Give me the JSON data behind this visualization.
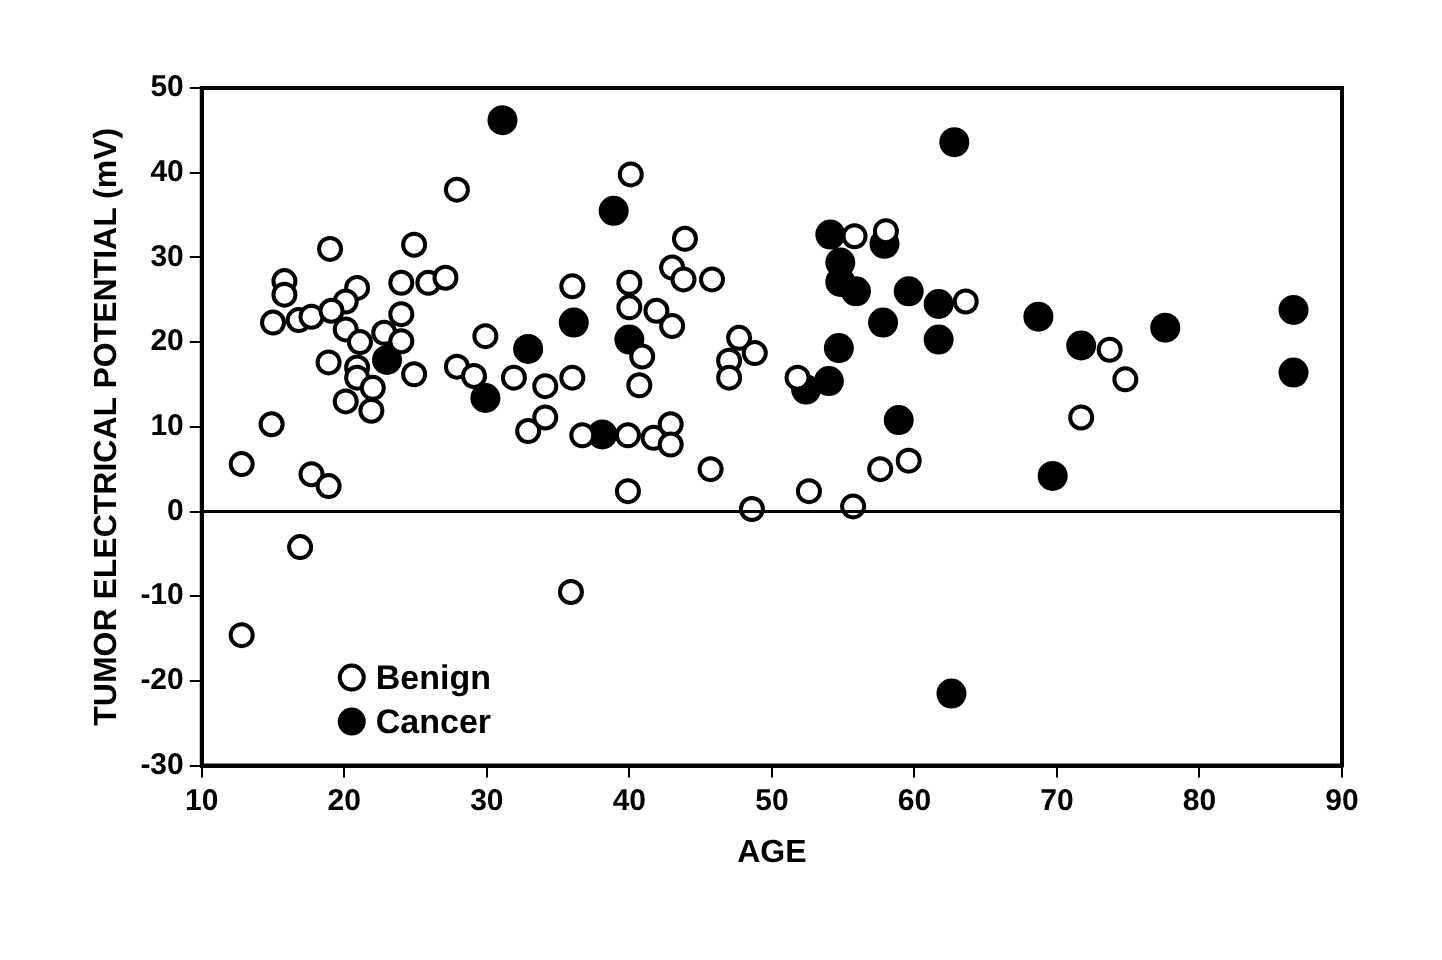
{
  "chart_data": {
    "type": "scatter",
    "xlabel": "AGE",
    "ylabel": "TUMOR ELECTRICAL POTENTIAL (mV)",
    "xlim": [
      10,
      90
    ],
    "xticks": [
      10,
      20,
      30,
      40,
      50,
      60,
      70,
      80,
      90
    ],
    "ylim": [
      -30,
      50
    ],
    "yticks": [
      -30,
      -20,
      -10,
      0,
      10,
      20,
      30,
      40,
      50
    ],
    "grid": false,
    "legend": "bottom left",
    "marker": "circle",
    "ref_lines": [
      {
        "axis": "y",
        "value": 0,
        "color": "#000000"
      }
    ],
    "series": [
      {
        "name": "Benign",
        "color": "#000000",
        "x": [
          12.8,
          14.9,
          17.7,
          18.9,
          16.9,
          12.8,
          35.9,
          32.9,
          34.1,
          36.7,
          39.9,
          41.7,
          42.9,
          42.9,
          39.9,
          45.7,
          48.6,
          20.1,
          21.9,
          71.7,
          52.6,
          55.7,
          57.6,
          59.6,
          73.7,
          74.8,
          40.1,
          43.9,
          43.0,
          43.8,
          45.8,
          40.0,
          40.0,
          41.9,
          43.0,
          40.9,
          40.7,
          47.7,
          48.8,
          47.0,
          47.0,
          51.8,
          55.8,
          58.0,
          63.6,
          27.9,
          19.0,
          24.9,
          15.8,
          15.8,
          20.9,
          20.1,
          24.0,
          25.9,
          27.1,
          36.0,
          15.0,
          16.8,
          17.7,
          19.1,
          24.0,
          20.1,
          21.1,
          22.8,
          24.0,
          18.9,
          20.9,
          20.9,
          22.0,
          24.9,
          29.9,
          27.9,
          29.1,
          31.9,
          34.1,
          36.0
        ],
        "values": [
          5.6,
          10.3,
          4.4,
          3.0,
          -4.2,
          -14.6,
          -9.5,
          9.5,
          11.1,
          9.0,
          9.0,
          8.7,
          10.3,
          7.9,
          2.4,
          5.0,
          0.3,
          13.0,
          11.9,
          11.1,
          2.4,
          0.6,
          5.0,
          6.0,
          19.1,
          15.6,
          39.8,
          32.2,
          28.8,
          27.4,
          27.4,
          27.0,
          24.1,
          23.7,
          21.9,
          18.3,
          14.9,
          20.5,
          18.7,
          17.8,
          15.8,
          15.8,
          32.5,
          33.1,
          24.8,
          38.0,
          31.0,
          31.5,
          27.2,
          25.6,
          26.4,
          24.8,
          27.0,
          27.0,
          27.6,
          26.6,
          22.3,
          22.6,
          23.0,
          23.7,
          23.3,
          21.5,
          20.0,
          21.1,
          20.1,
          17.6,
          17.0,
          15.8,
          14.6,
          16.2,
          20.7,
          17.1,
          16.0,
          15.8,
          14.8,
          15.8
        ]
      },
      {
        "name": "Cancer",
        "color": "#000000",
        "x": [
          29.9,
          38.1,
          58.9,
          69.7,
          62.6,
          68.7,
          71.7,
          77.6,
          86.6,
          86.6,
          62.8,
          38.9,
          40.0,
          52.4,
          54.0,
          54.1,
          57.9,
          54.8,
          54.8,
          55.9,
          59.6,
          61.7,
          57.8,
          61.7,
          54.7,
          31.1,
          23.0,
          32.9,
          36.1
        ],
        "values": [
          13.4,
          9.1,
          10.8,
          4.2,
          -21.5,
          23.0,
          19.6,
          21.7,
          23.8,
          16.4,
          43.6,
          35.5,
          20.3,
          14.4,
          15.4,
          32.7,
          31.6,
          29.4,
          27.1,
          26.0,
          26.0,
          24.5,
          22.3,
          20.3,
          19.3,
          46.2,
          17.9,
          19.2,
          22.3
        ]
      }
    ]
  }
}
